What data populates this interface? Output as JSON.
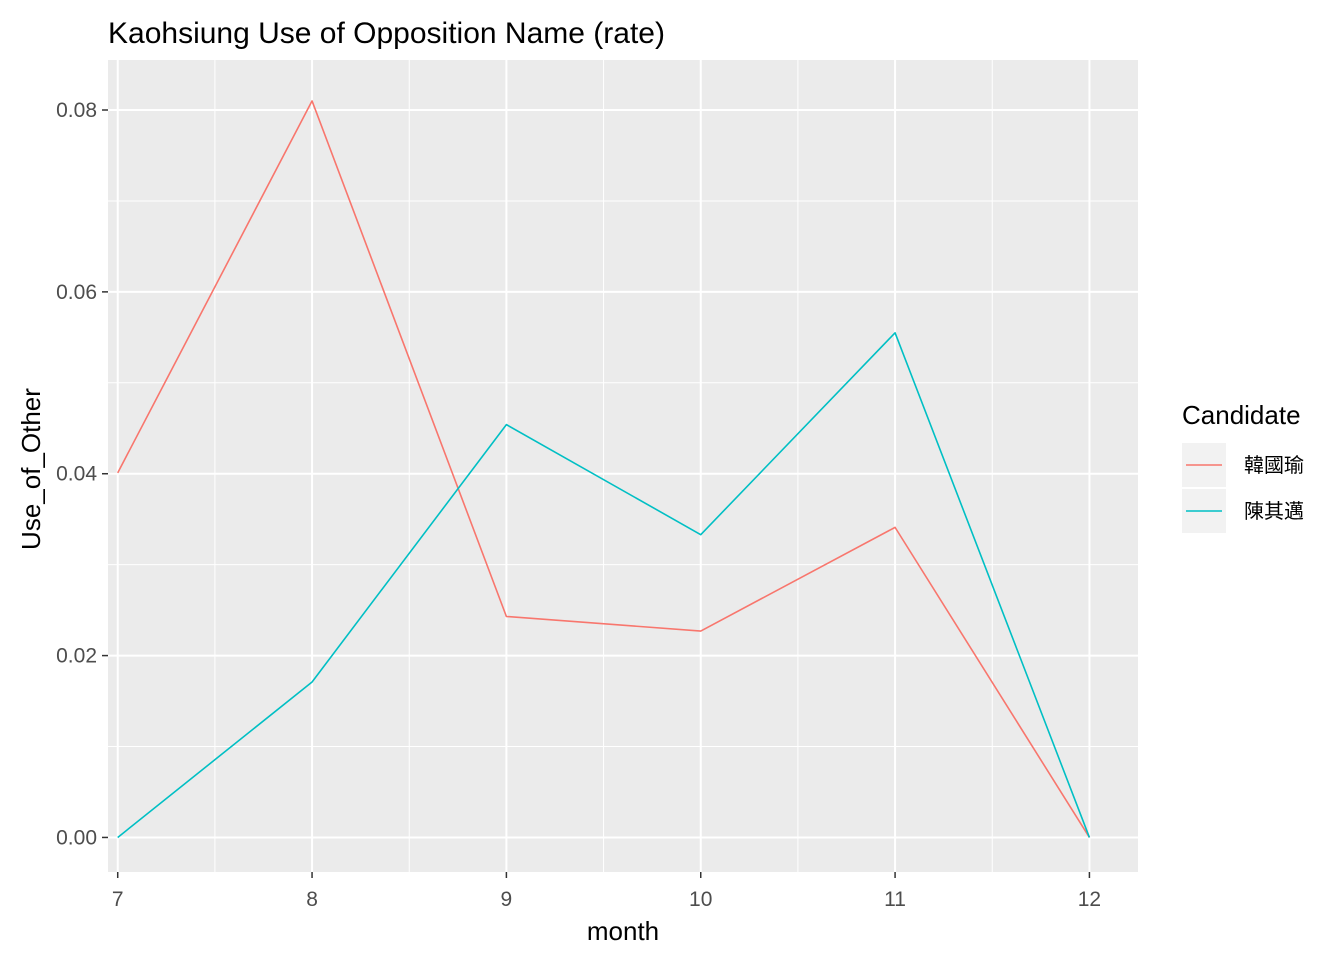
{
  "chart_data": {
    "type": "line",
    "title": "Kaohsiung Use of Opposition Name (rate)",
    "xlabel": "month",
    "ylabel": "Use_of_Other",
    "x": [
      7,
      8,
      9,
      10,
      11,
      12
    ],
    "xlim": [
      6.95,
      12.25
    ],
    "ylim": [
      -0.0038,
      0.0855
    ],
    "x_ticks": [
      7,
      8,
      9,
      10,
      11,
      12
    ],
    "x_tick_labels": [
      "7",
      "8",
      "9",
      "10",
      "11",
      "12"
    ],
    "y_ticks": [
      0,
      0.02,
      0.04,
      0.06,
      0.08
    ],
    "y_tick_labels": [
      "0.00",
      "0.02",
      "0.04",
      "0.06",
      "0.08"
    ],
    "grid": true,
    "legend": {
      "title": "Candidate",
      "position": "right"
    },
    "series": [
      {
        "name": "韓國瑜",
        "color": "#F8766D",
        "values": [
          0.0401,
          0.081,
          0.0243,
          0.0227,
          0.0341,
          0.0
        ]
      },
      {
        "name": "陳其邁",
        "color": "#00BFC4",
        "values": [
          0.0,
          0.0171,
          0.0454,
          0.0333,
          0.0555,
          0.0
        ]
      }
    ],
    "panel_color": "#EBEBEB",
    "grid_color": "#FFFFFF"
  }
}
